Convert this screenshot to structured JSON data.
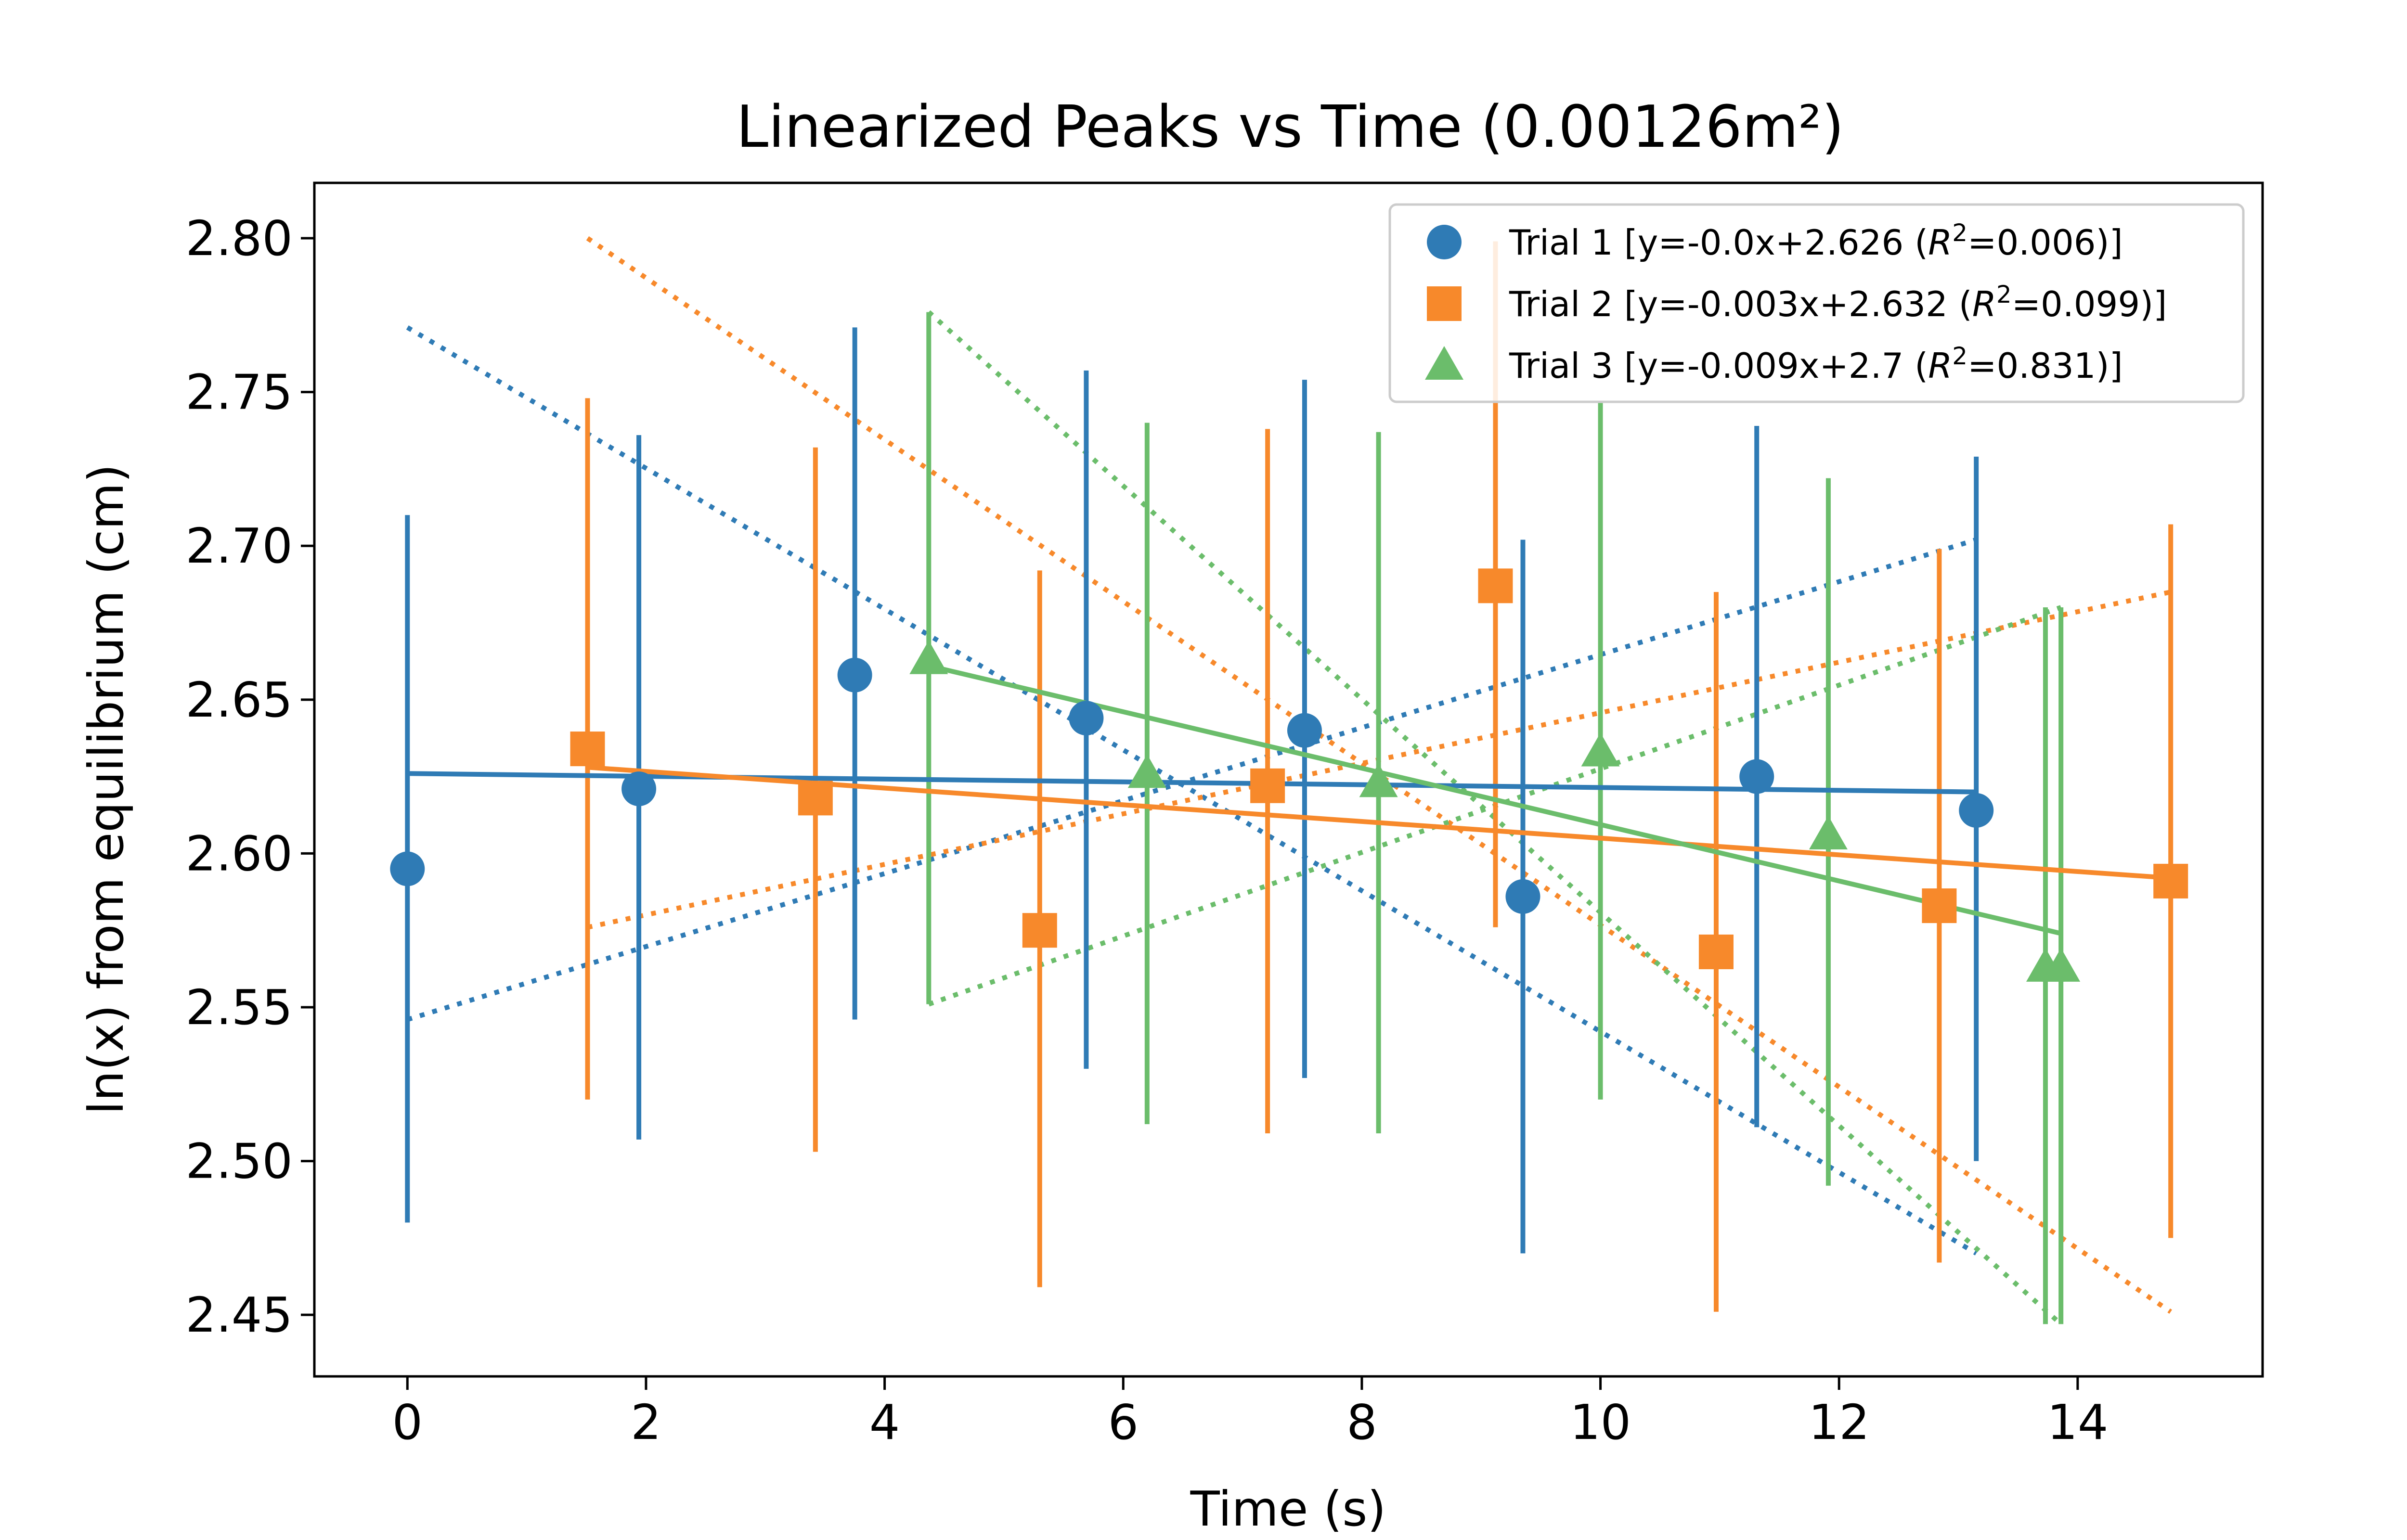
{
  "chart_data": {
    "type": "scatter",
    "title": "Linearized Peaks vs Time (0.00126m²)",
    "xlabel": "Time (s)",
    "ylabel": "ln(x) from equilibrium (cm)",
    "xlim": [
      -0.78,
      15.55
    ],
    "ylim": [
      2.43,
      2.818
    ],
    "xticks": [
      0,
      2,
      4,
      6,
      8,
      10,
      12,
      14
    ],
    "xtick_labels": [
      "0",
      "2",
      "4",
      "6",
      "8",
      "10",
      "12",
      "14"
    ],
    "yticks": [
      2.45,
      2.5,
      2.55,
      2.6,
      2.65,
      2.7,
      2.75,
      2.8
    ],
    "ytick_labels": [
      "2.45",
      "2.50",
      "2.55",
      "2.60",
      "2.65",
      "2.70",
      "2.75",
      "2.80"
    ],
    "legend_position": "top-right",
    "grid": false,
    "series": [
      {
        "name": "Trial 1",
        "legend_prefix": "Trial 1 [y=-0.0x+2.626 (",
        "legend_r2": "=0.006)]",
        "color": "#2f7bb5",
        "marker": "circle",
        "x": [
          0.0,
          1.94,
          3.75,
          5.69,
          7.52,
          9.35,
          11.31,
          13.15
        ],
        "y": [
          2.595,
          2.621,
          2.658,
          2.644,
          2.64,
          2.586,
          2.625,
          2.614
        ],
        "yerr_low": [
          2.48,
          2.507,
          2.546,
          2.53,
          2.527,
          2.47,
          2.511,
          2.5
        ],
        "yerr_high": [
          2.71,
          2.736,
          2.771,
          2.757,
          2.754,
          2.702,
          2.739,
          2.729
        ],
        "fit": {
          "x": [
            0.0,
            13.15
          ],
          "y": [
            2.626,
            2.62
          ]
        },
        "bound_lines": [
          {
            "x": [
              0.0,
              13.15
            ],
            "y": [
              2.771,
              2.47
            ]
          },
          {
            "x": [
              0.0,
              13.15
            ],
            "y": [
              2.546,
              2.702
            ]
          }
        ]
      },
      {
        "name": "Trial 2",
        "legend_prefix": "Trial 2 [y=-0.003x+2.632 (",
        "legend_r2": "=0.099)]",
        "color": "#f7892b",
        "marker": "square",
        "x": [
          1.51,
          3.42,
          5.3,
          7.21,
          9.12,
          10.97,
          12.84,
          14.78
        ],
        "y": [
          2.634,
          2.618,
          2.575,
          2.622,
          2.687,
          2.568,
          2.583,
          2.591
        ],
        "yerr_low": [
          2.52,
          2.503,
          2.459,
          2.509,
          2.576,
          2.451,
          2.467,
          2.475
        ],
        "yerr_high": [
          2.748,
          2.732,
          2.692,
          2.738,
          2.799,
          2.685,
          2.699,
          2.707
        ],
        "fit": {
          "x": [
            1.51,
            14.78
          ],
          "y": [
            2.628,
            2.592
          ]
        },
        "bound_lines": [
          {
            "x": [
              1.51,
              14.78
            ],
            "y": [
              2.8,
              2.451
            ]
          },
          {
            "x": [
              1.51,
              14.78
            ],
            "y": [
              2.576,
              2.685
            ]
          }
        ]
      },
      {
        "name": "Trial 3",
        "legend_prefix": "Trial 3 [y=-0.009x+2.7 (",
        "legend_r2": "=0.831)]",
        "color": "#6bbd6b",
        "marker": "triangle",
        "x": [
          4.37,
          6.2,
          8.14,
          10.0,
          11.91,
          13.73,
          13.86
        ],
        "y": [
          2.663,
          2.626,
          2.623,
          2.633,
          2.606,
          2.563,
          2.563
        ],
        "yerr_low": [
          2.551,
          2.512,
          2.509,
          2.52,
          2.492,
          2.447,
          2.447
        ],
        "yerr_high": [
          2.776,
          2.74,
          2.737,
          2.747,
          2.722,
          2.68,
          2.68
        ],
        "fit": {
          "x": [
            4.37,
            13.86
          ],
          "y": [
            2.661,
            2.574
          ]
        },
        "bound_lines": [
          {
            "x": [
              4.37,
              13.86
            ],
            "y": [
              2.776,
              2.447
            ]
          },
          {
            "x": [
              4.37,
              13.86
            ],
            "y": [
              2.551,
              2.68
            ]
          }
        ]
      }
    ]
  }
}
